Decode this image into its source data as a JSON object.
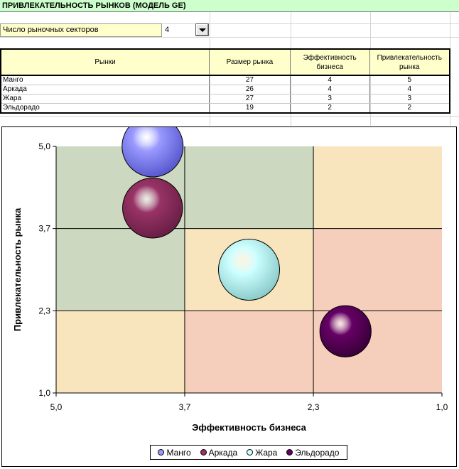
{
  "sheet": {
    "title": "ПРИВЛЕКАТЕЛЬНОСТЬ РЫНКОВ (МОДЕЛЬ GE)",
    "sectors_label": "Число рыночных секторов",
    "sectors_value": "4",
    "table": {
      "headers": [
        "Рынки",
        "Размер рынка",
        "Эффективность бизнеса",
        "Привлекательность рынка"
      ],
      "rows": [
        [
          "Манго",
          "27",
          "4",
          "5"
        ],
        [
          "Аркада",
          "26",
          "4",
          "4"
        ],
        [
          "Жара",
          "27",
          "3",
          "3"
        ],
        [
          "Эльдорадо",
          "19",
          "2",
          "2"
        ]
      ]
    }
  },
  "chart_data": {
    "type": "bubble",
    "title": "",
    "xlabel": "Эффективность бизнеса",
    "ylabel": "Привлекательность рынка",
    "xlim": [
      5.0,
      1.0
    ],
    "ylim": [
      1.0,
      5.0
    ],
    "x_reversed": true,
    "xticks": [
      "5,0",
      "3,7",
      "2,3",
      "1,0"
    ],
    "yticks": [
      "1,0",
      "2,3",
      "3,7",
      "5,0"
    ],
    "xtick_values": [
      5.0,
      3.667,
      2.333,
      1.0
    ],
    "ytick_values": [
      1.0,
      2.333,
      3.667,
      5.0
    ],
    "grid": true,
    "legend_position": "bottom",
    "zones": [
      {
        "x": [
          5.0,
          3.667
        ],
        "y": [
          3.667,
          5.0
        ],
        "color": "#cdd8c0"
      },
      {
        "x": [
          3.667,
          2.333
        ],
        "y": [
          3.667,
          5.0
        ],
        "color": "#cdd8c0"
      },
      {
        "x": [
          2.333,
          1.0
        ],
        "y": [
          3.667,
          5.0
        ],
        "color": "#f8e5bd"
      },
      {
        "x": [
          5.0,
          3.667
        ],
        "y": [
          2.333,
          3.667
        ],
        "color": "#cdd8c0"
      },
      {
        "x": [
          3.667,
          2.333
        ],
        "y": [
          2.333,
          3.667
        ],
        "color": "#f8e5bd"
      },
      {
        "x": [
          2.333,
          1.0
        ],
        "y": [
          2.333,
          3.667
        ],
        "color": "#f6cfbc"
      },
      {
        "x": [
          5.0,
          3.667
        ],
        "y": [
          1.0,
          2.333
        ],
        "color": "#f8e5bd"
      },
      {
        "x": [
          3.667,
          2.333
        ],
        "y": [
          1.0,
          2.333
        ],
        "color": "#f6cfbc"
      },
      {
        "x": [
          2.333,
          1.0
        ],
        "y": [
          1.0,
          2.333
        ],
        "color": "#f6cfbc"
      }
    ],
    "series": [
      {
        "name": "Манго",
        "x": 4.0,
        "y": 5.0,
        "size": 27,
        "color": "#9999ff",
        "dark": "#5a5ad0"
      },
      {
        "name": "Аркада",
        "x": 4.0,
        "y": 4.0,
        "size": 26,
        "color": "#993366",
        "dark": "#6a1f45"
      },
      {
        "name": "Жара",
        "x": 3.0,
        "y": 3.0,
        "size": 27,
        "color": "#ccffff",
        "dark": "#8ecccc"
      },
      {
        "name": "Эльдорадо",
        "x": 2.0,
        "y": 2.0,
        "size": 19,
        "color": "#660066",
        "dark": "#3a003a"
      }
    ]
  }
}
